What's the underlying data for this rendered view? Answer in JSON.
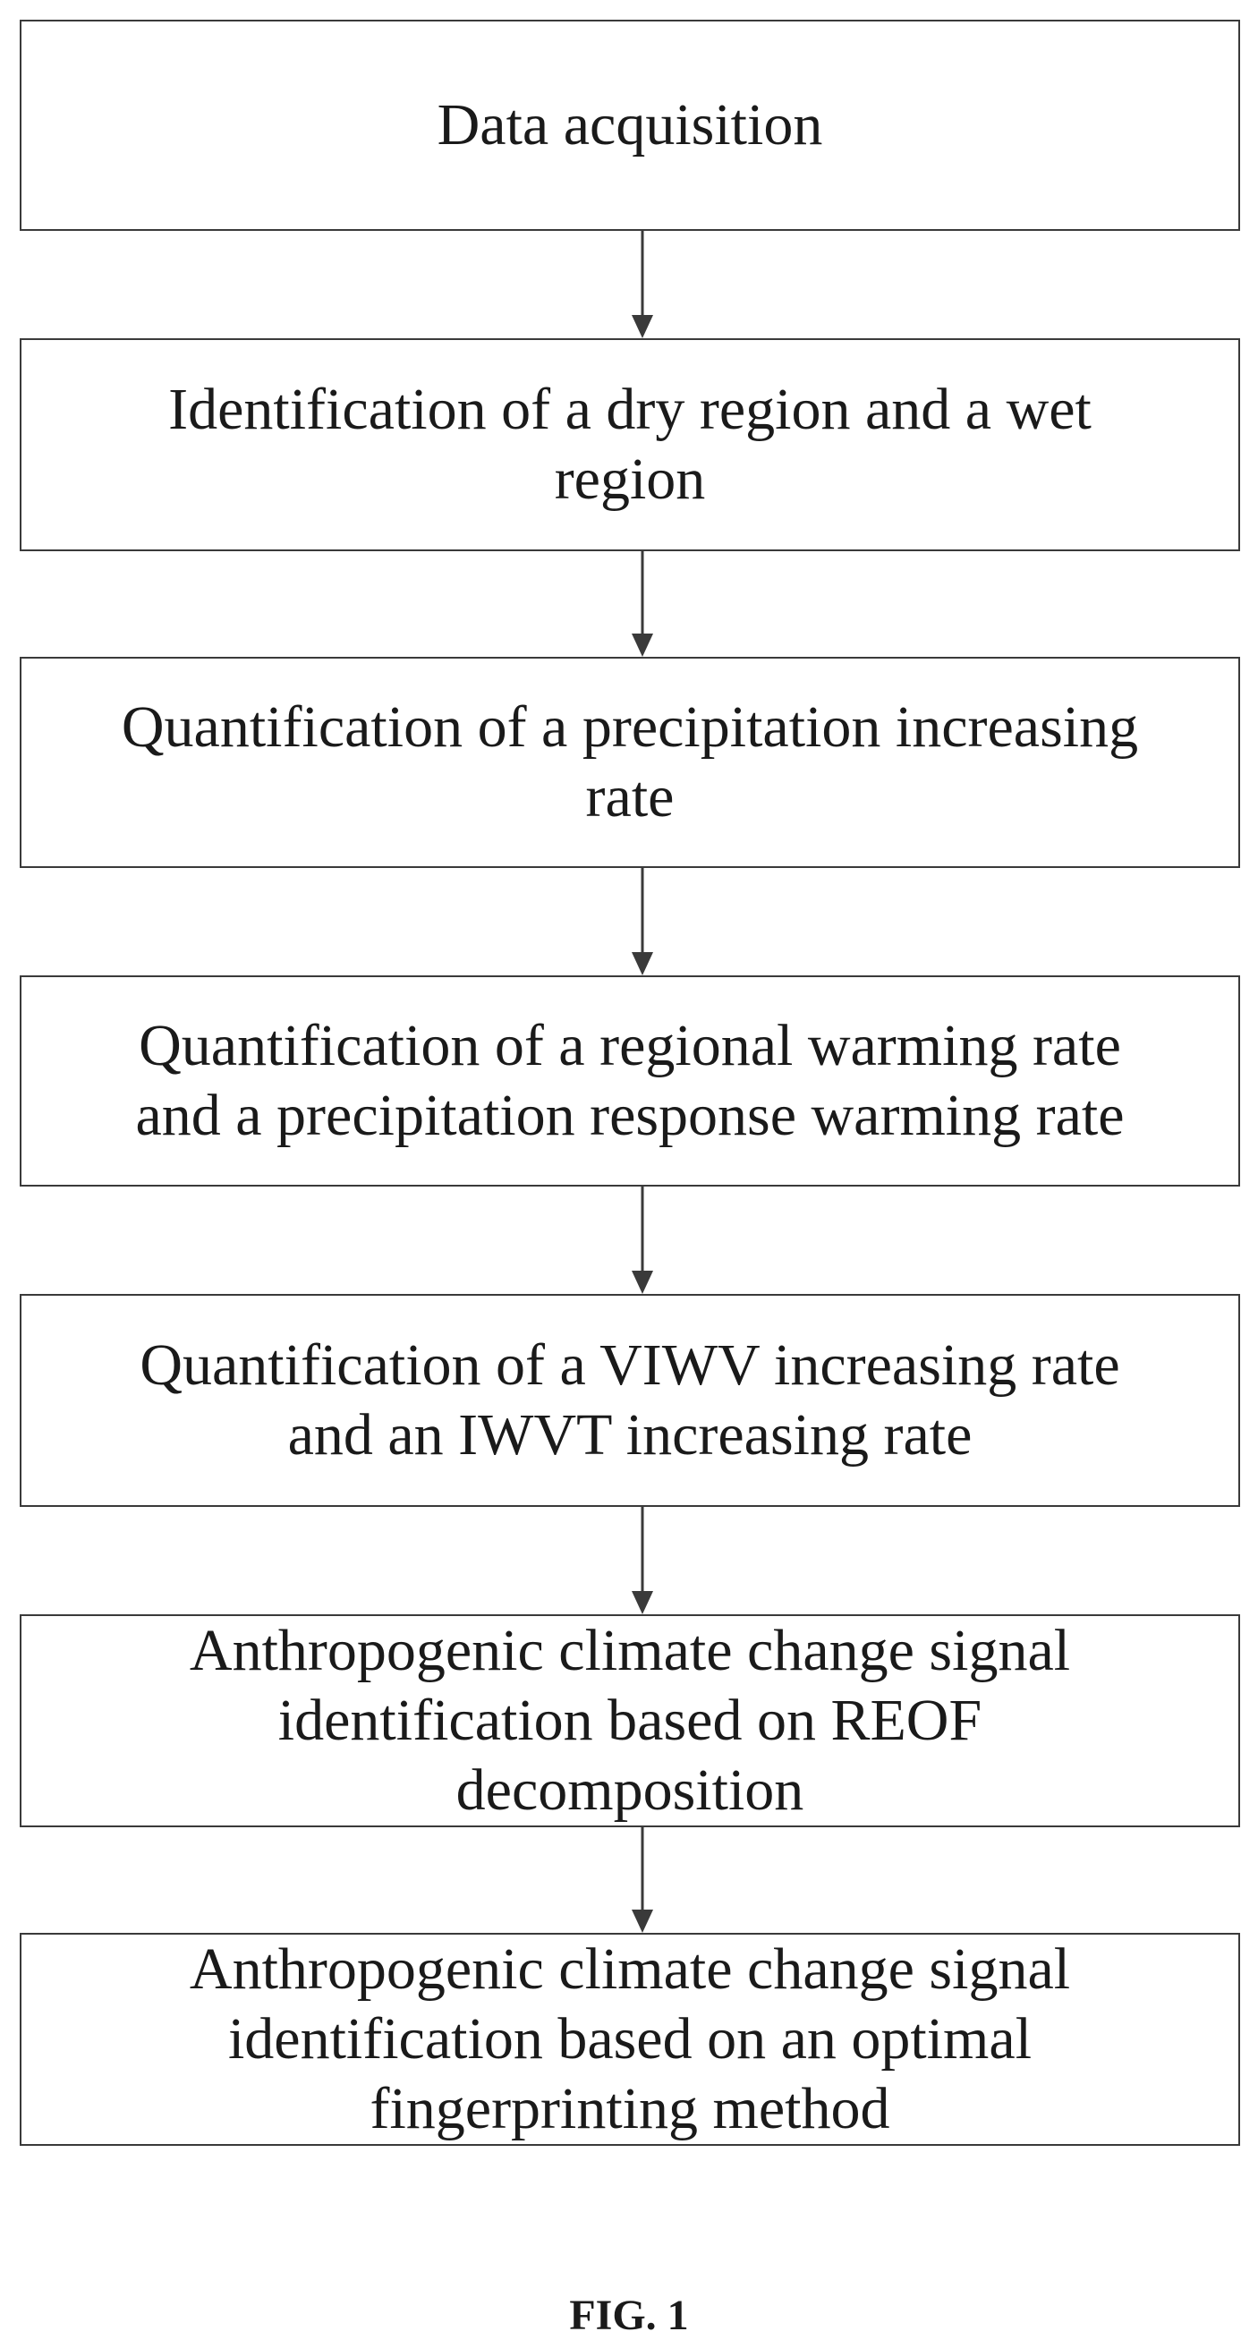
{
  "steps": [
    {
      "lines": [
        "Data acquisition"
      ]
    },
    {
      "lines": [
        "Identification of a dry region and a wet",
        "region"
      ]
    },
    {
      "lines": [
        "Quantification of a precipitation increasing",
        "rate"
      ]
    },
    {
      "lines": [
        "Quantification of a regional warming rate",
        "and a precipitation response warming rate"
      ]
    },
    {
      "lines": [
        "Quantification of a VIWV increasing rate",
        "and an IWVT increasing rate"
      ]
    },
    {
      "lines": [
        "Anthropogenic climate change signal",
        "identification based on REOF",
        "decomposition"
      ]
    },
    {
      "lines": [
        "Anthropogenic climate change signal",
        "identification based on an optimal",
        "fingerprinting method"
      ]
    }
  ],
  "caption": "FIG. 1"
}
